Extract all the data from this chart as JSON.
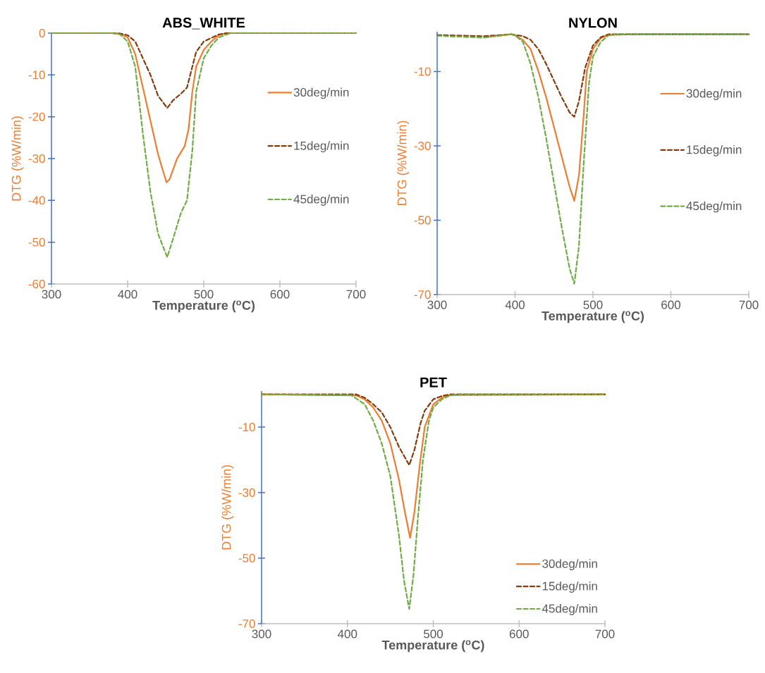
{
  "chart_data": [
    {
      "type": "line",
      "title": "ABS_WHITE",
      "xlabel": "Temperature ($^{o}$C)",
      "ylabel": "DTG (%W/min)",
      "xlim": [
        300,
        700
      ],
      "ylim": [
        -60,
        0
      ],
      "xticks": [
        300,
        400,
        500,
        600,
        700
      ],
      "yticks": [
        -60,
        -50,
        -40,
        -30,
        -20,
        -10,
        0
      ],
      "legend": "right",
      "grid": false,
      "series": [
        {
          "name": "30deg/min",
          "color": "#ed7d31",
          "line_style": "solid",
          "x": [
            300,
            380,
            390,
            400,
            410,
            420,
            430,
            440,
            451,
            455,
            465,
            475,
            480,
            485,
            490,
            500,
            510,
            520,
            530,
            700
          ],
          "values": [
            0,
            0,
            -0.2,
            -1,
            -5,
            -13,
            -21,
            -29,
            -35.7,
            -35,
            -30,
            -27,
            -23,
            -14,
            -8,
            -4,
            -2,
            -0.5,
            0,
            0
          ]
        },
        {
          "name": "15deg/min",
          "color": "#843c0c",
          "line_style": "dashed",
          "x": [
            300,
            380,
            390,
            400,
            410,
            420,
            430,
            440,
            452,
            460,
            470,
            478,
            485,
            490,
            500,
            520,
            530,
            700
          ],
          "values": [
            0,
            0,
            -0.1,
            -0.5,
            -2,
            -6,
            -10,
            -15,
            -17.9,
            -16,
            -14.5,
            -13,
            -8,
            -4.5,
            -2,
            -0.3,
            0,
            0
          ]
        },
        {
          "name": "45deg/min",
          "color": "#70ad47",
          "line_style": "dashed",
          "x": [
            300,
            380,
            390,
            400,
            410,
            420,
            430,
            440,
            452,
            460,
            470,
            478,
            485,
            490,
            500,
            510,
            520,
            535,
            700
          ],
          "values": [
            0,
            0,
            -0.3,
            -2,
            -8,
            -24,
            -38,
            -48,
            -53.6,
            -49,
            -43,
            -40,
            -28,
            -14,
            -6,
            -3,
            -1,
            0,
            0
          ]
        }
      ]
    },
    {
      "type": "line",
      "title": "NYLON",
      "xlabel": "Temperature ($^{o}$C)",
      "ylabel": "DTG (%W/min)",
      "xlim": [
        300,
        700
      ],
      "ylim": [
        -70,
        0.7
      ],
      "xticks": [
        300,
        400,
        500,
        600,
        700
      ],
      "yticks": [
        -70,
        -50,
        -30,
        -10
      ],
      "legend": "right",
      "grid": false,
      "series": [
        {
          "name": "30deg/min",
          "color": "#ed7d31",
          "line_style": "solid",
          "x": [
            360,
            395,
            400,
            410,
            420,
            430,
            440,
            450,
            460,
            470,
            476,
            482,
            488,
            492,
            500,
            510,
            520,
            550,
            700
          ],
          "values": [
            -0.8,
            0,
            -0.3,
            -1.5,
            -4,
            -10,
            -17,
            -25,
            -33,
            -41,
            -44.8,
            -38,
            -22,
            -10,
            -4,
            -1,
            -0.2,
            0,
            0
          ]
        },
        {
          "name": "15deg/min",
          "color": "#843c0c",
          "line_style": "dashed",
          "x": [
            300,
            360,
            395,
            410,
            420,
            430,
            440,
            450,
            460,
            470,
            476,
            482,
            490,
            500,
            510,
            520,
            550,
            700
          ],
          "values": [
            -0.2,
            -0.5,
            0,
            -0.5,
            -1.5,
            -4,
            -8,
            -12.5,
            -17,
            -21,
            -22.2,
            -18,
            -9,
            -3,
            -0.8,
            0,
            0,
            0
          ]
        },
        {
          "name": "45deg/min",
          "color": "#70ad47",
          "line_style": "dashed",
          "x": [
            300,
            360,
            395,
            400,
            410,
            420,
            430,
            440,
            450,
            460,
            470,
            476,
            482,
            488,
            495,
            500,
            510,
            520,
            530,
            700
          ],
          "values": [
            -0.4,
            -0.9,
            0,
            -0.3,
            -2,
            -8,
            -17,
            -28,
            -40,
            -52,
            -63,
            -67.1,
            -57,
            -35,
            -13,
            -6,
            -2,
            -0.3,
            0,
            0
          ]
        }
      ]
    },
    {
      "type": "line",
      "title": "PET",
      "xlabel": "Temperature ($^{o}$C)",
      "ylabel": "DTG (%W/min)",
      "xlim": [
        300,
        700
      ],
      "ylim": [
        -70,
        1
      ],
      "xticks": [
        300,
        400,
        500,
        600,
        700
      ],
      "yticks": [
        -70,
        -50,
        -30,
        -10
      ],
      "legend": "bottom right",
      "grid": false,
      "series": [
        {
          "name": "30deg/min",
          "color": "#ed7d31",
          "line_style": "solid",
          "x": [
            300,
            410,
            420,
            430,
            440,
            450,
            460,
            467,
            473,
            478,
            484,
            490,
            500,
            510,
            520,
            700
          ],
          "values": [
            0,
            -0.3,
            -1.5,
            -4,
            -8,
            -15,
            -26,
            -36,
            -43.8,
            -36,
            -22,
            -10,
            -3,
            -1,
            -0.2,
            0
          ]
        },
        {
          "name": "15deg/min",
          "color": "#843c0c",
          "line_style": "dashed",
          "x": [
            300,
            410,
            420,
            430,
            440,
            450,
            460,
            472,
            478,
            485,
            490,
            500,
            510,
            520,
            700
          ],
          "values": [
            0,
            0,
            -1,
            -3,
            -5.5,
            -10,
            -16,
            -21.6,
            -17,
            -9,
            -5,
            -1.5,
            -0.5,
            0,
            0
          ]
        },
        {
          "name": "45deg/min",
          "color": "#70ad47",
          "line_style": "dashed",
          "x": [
            300,
            405,
            420,
            430,
            440,
            450,
            460,
            466,
            472,
            477,
            482,
            488,
            495,
            500,
            510,
            520,
            530,
            700
          ],
          "values": [
            0,
            -0.3,
            -3,
            -8,
            -15,
            -25,
            -43,
            -57,
            -65.5,
            -55,
            -38,
            -20,
            -8,
            -4,
            -1.5,
            -0.3,
            0,
            0
          ]
        }
      ]
    }
  ]
}
